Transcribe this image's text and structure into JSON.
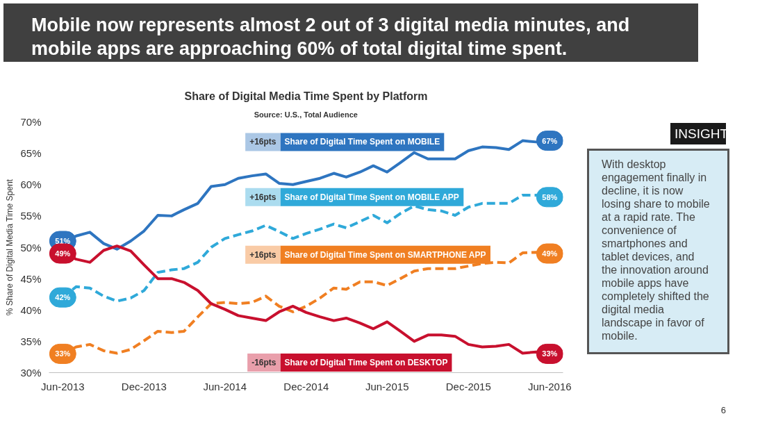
{
  "chart_data": {
    "type": "line",
    "title": "Mobile now represents almost 2 out of 3 digital media minutes, and mobile apps are approaching 60% of total digital time spent.",
    "subtitle": "Share of Digital Media Time Spent by Platform",
    "ylabel": "% Share of Digital Media Time Spent",
    "annotations": [
      "Source: U.S., Total Audience",
      "INSIGHT",
      "With desktop engagement finally in decline, it is now losing share to mobile at a rapid rate. The convenience of smartphones and tablet devices, and the innovation around mobile apps have completely shifted the digital media landscape in favor of mobile.",
      "+16pts",
      "+16pts",
      "+16pts",
      "-16pts",
      "6"
    ],
    "x": [
      "2013-06",
      "2013-07",
      "2013-08",
      "2013-09",
      "2013-10",
      "2013-11",
      "2013-12",
      "2014-01",
      "2014-02",
      "2014-03",
      "2014-04",
      "2014-05",
      "2014-06",
      "2014-07",
      "2014-08",
      "2014-09",
      "2014-10",
      "2014-11",
      "2014-12",
      "2015-01",
      "2015-02",
      "2015-03",
      "2015-04",
      "2015-05",
      "2015-06",
      "2015-07",
      "2015-08",
      "2015-09",
      "2015-10",
      "2015-11",
      "2015-12",
      "2016-01",
      "2016-02",
      "2016-03",
      "2016-04",
      "2016-05",
      "2016-06"
    ],
    "series": [
      {
        "name": "Share of Digital Time Spent on MOBILE",
        "color": "#2e75c0",
        "line_style": "solid",
        "values": [
          51,
          51.8,
          52.4,
          50.6,
          49.7,
          51,
          52.6,
          55.1,
          55,
          56,
          57,
          59.7,
          60,
          61,
          61.4,
          61.7,
          60.2,
          60,
          60.5,
          61,
          61.8,
          61.2,
          62,
          63,
          62,
          63.5,
          65.1,
          64.1,
          64.1,
          64.1,
          65.4,
          66,
          65.9,
          65.6,
          67,
          66.8,
          67
        ],
        "value_labels": [
          "51%",
          null,
          null,
          null,
          null,
          null,
          null,
          null,
          null,
          null,
          null,
          null,
          null,
          null,
          null,
          null,
          null,
          null,
          null,
          null,
          null,
          null,
          null,
          null,
          null,
          null,
          null,
          null,
          null,
          null,
          null,
          null,
          null,
          null,
          null,
          null,
          "67%"
        ]
      },
      {
        "name": "Share of Digital Time Spent on MOBILE APP",
        "color": "#2fa9d9",
        "line_style": "dashed",
        "values": [
          42,
          43.7,
          43.5,
          42.2,
          41.4,
          41.9,
          43.1,
          46,
          46.4,
          46.6,
          47.6,
          50,
          51.4,
          52,
          52.6,
          53.5,
          52.5,
          51.4,
          52.2,
          52.9,
          53.7,
          53.1,
          54.1,
          55.1,
          53.9,
          55.4,
          56.6,
          56,
          55.8,
          55.1,
          56.4,
          57,
          57,
          57,
          58.3,
          58.3,
          58
        ],
        "value_labels": [
          "42%",
          null,
          null,
          null,
          null,
          null,
          null,
          null,
          null,
          null,
          null,
          null,
          null,
          null,
          null,
          null,
          null,
          null,
          null,
          null,
          null,
          null,
          null,
          null,
          null,
          null,
          null,
          null,
          null,
          null,
          null,
          null,
          null,
          null,
          null,
          null,
          "58%"
        ]
      },
      {
        "name": "Share of Digital Time Spent on SMARTPHONE APP",
        "color": "#f07f22",
        "line_style": "dashed",
        "values": [
          33,
          34.1,
          34.5,
          33.5,
          33.1,
          33.7,
          35.1,
          36.6,
          36.4,
          36.6,
          38.9,
          41,
          41.2,
          41,
          41.2,
          42.2,
          40.6,
          39.7,
          40.6,
          41.9,
          43.5,
          43.3,
          44.5,
          44.5,
          43.9,
          45,
          46.2,
          46.6,
          46.6,
          46.6,
          47,
          47.4,
          47.6,
          47.5,
          49.1,
          49.2,
          49
        ],
        "value_labels": [
          "33%",
          null,
          null,
          null,
          null,
          null,
          null,
          null,
          null,
          null,
          null,
          null,
          null,
          null,
          null,
          null,
          null,
          null,
          null,
          null,
          null,
          null,
          null,
          null,
          null,
          null,
          null,
          null,
          null,
          null,
          null,
          null,
          null,
          null,
          null,
          null,
          "49%"
        ]
      },
      {
        "name": "Share of Digital Time Spent on DESKTOP",
        "color": "#c8102e",
        "line_style": "solid",
        "values": [
          49,
          48.1,
          47.6,
          49.5,
          50.2,
          49.4,
          47.2,
          45,
          45,
          44.4,
          43.1,
          41,
          40.1,
          39.1,
          38.7,
          38.3,
          39.7,
          40.6,
          39.6,
          38.9,
          38.3,
          38.7,
          37.9,
          37,
          38.1,
          36.6,
          35,
          36,
          36,
          35.8,
          34.5,
          34.1,
          34.2,
          34.5,
          33.1,
          33.3,
          33
        ],
        "value_labels": [
          "49%",
          null,
          null,
          null,
          null,
          null,
          null,
          null,
          null,
          null,
          null,
          null,
          null,
          null,
          null,
          null,
          null,
          null,
          null,
          null,
          null,
          null,
          null,
          null,
          null,
          null,
          null,
          null,
          null,
          null,
          null,
          null,
          null,
          null,
          null,
          null,
          "33%"
        ]
      }
    ],
    "xlim": [
      "2013-05",
      "2016-07"
    ],
    "xticks": [
      {
        "value": "2013-06",
        "label": "Jun-2013"
      },
      {
        "value": "2013-12",
        "label": "Dec-2013"
      },
      {
        "value": "2014-06",
        "label": "Jun-2014"
      },
      {
        "value": "2014-12",
        "label": "Dec-2014"
      },
      {
        "value": "2015-06",
        "label": "Jun-2015"
      },
      {
        "value": "2015-12",
        "label": "Dec-2015"
      },
      {
        "value": "2016-06",
        "label": "Jun-2016"
      }
    ],
    "ylim": [
      30,
      70
    ],
    "yticks": [
      {
        "value": 30,
        "label": "30%"
      },
      {
        "value": 35,
        "label": "35%"
      },
      {
        "value": 40,
        "label": "40%"
      },
      {
        "value": 45,
        "label": "45%"
      },
      {
        "value": 50,
        "label": "50%"
      },
      {
        "value": 55,
        "label": "55%"
      },
      {
        "value": 60,
        "label": "60%"
      },
      {
        "value": 65,
        "label": "65%"
      },
      {
        "value": 70,
        "label": "70%"
      }
    ],
    "grid": false
  }
}
